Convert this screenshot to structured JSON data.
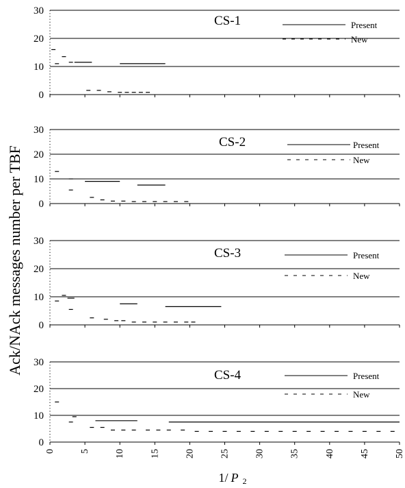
{
  "chart_data": {
    "type": "line",
    "ylabel": "Ack/NAck messages number per TBF",
    "xlabel": "1/ P 2",
    "xlabel_main": "1/",
    "xlabel_var": "P",
    "xlabel_sub": "2",
    "xlim": [
      0,
      50
    ],
    "xticks": [
      0,
      5,
      10,
      15,
      20,
      25,
      30,
      35,
      40,
      45,
      50
    ],
    "ylim": [
      0,
      30
    ],
    "yticks": [
      0,
      10,
      20,
      30
    ],
    "legend": {
      "placement": "top-right",
      "entries": [
        {
          "label": "Present",
          "style": "solid"
        },
        {
          "label": "New",
          "style": "dashed"
        }
      ]
    },
    "panels": [
      {
        "title": "CS-1",
        "series": [
          {
            "name": "Present",
            "style": "solid",
            "segments": [
              {
                "x": [
                  3.5,
                  6
                ],
                "y": 11.5
              },
              {
                "x": [
                  10,
                  16.5
                ],
                "y": 11
              }
            ]
          },
          {
            "name": "New",
            "style": "dashed",
            "points": [
              [
                0.5,
                16
              ],
              [
                1,
                11
              ],
              [
                2,
                13.5
              ],
              [
                3,
                11.5
              ],
              [
                5.5,
                1.5
              ],
              [
                7,
                1.5
              ],
              [
                8.5,
                1
              ],
              [
                10,
                0.8
              ],
              [
                11,
                0.8
              ],
              [
                12,
                0.8
              ],
              [
                13,
                0.8
              ],
              [
                14,
                0.8
              ]
            ]
          }
        ]
      },
      {
        "title": "CS-2",
        "series": [
          {
            "name": "Present",
            "style": "solid",
            "segments": [
              {
                "x": [
                  5,
                  10
                ],
                "y": 9
              },
              {
                "x": [
                  12.5,
                  16.5
                ],
                "y": 7.5
              }
            ]
          },
          {
            "name": "New",
            "style": "dashed",
            "points": [
              [
                1,
                13
              ],
              [
                3,
                10
              ],
              [
                3,
                5.5
              ],
              [
                6,
                2.5
              ],
              [
                7.5,
                1.5
              ],
              [
                9,
                1
              ],
              [
                10.5,
                1
              ],
              [
                12,
                0.8
              ],
              [
                13.5,
                0.8
              ],
              [
                15,
                0.8
              ],
              [
                16.5,
                0.8
              ],
              [
                18,
                0.8
              ],
              [
                19.5,
                0.8
              ]
            ]
          }
        ]
      },
      {
        "title": "CS-3",
        "series": [
          {
            "name": "Present",
            "style": "solid",
            "segments": [
              {
                "x": [
                  2.5,
                  3.5
                ],
                "y": 9.5
              },
              {
                "x": [
                  10,
                  12.5
                ],
                "y": 7.5
              },
              {
                "x": [
                  16.5,
                  24.5
                ],
                "y": 6.5
              }
            ]
          },
          {
            "name": "New",
            "style": "dashed",
            "points": [
              [
                1,
                8.5
              ],
              [
                2,
                10.5
              ],
              [
                3,
                5.5
              ],
              [
                6,
                2.5
              ],
              [
                8,
                2
              ],
              [
                9.5,
                1.5
              ],
              [
                10.5,
                1.5
              ],
              [
                12,
                1
              ],
              [
                13.5,
                1
              ],
              [
                15,
                1
              ],
              [
                16.5,
                1
              ],
              [
                18,
                1
              ],
              [
                19.5,
                1
              ],
              [
                20.5,
                1
              ]
            ]
          }
        ]
      },
      {
        "title": "CS-4",
        "series": [
          {
            "name": "Present",
            "style": "solid",
            "segments": [
              {
                "x": [
                  6.5,
                  12.5
                ],
                "y": 8
              },
              {
                "x": [
                  17,
                  50
                ],
                "y": 7.5
              }
            ]
          },
          {
            "name": "New",
            "style": "dashed",
            "points": [
              [
                1,
                15
              ],
              [
                3,
                7.5
              ],
              [
                3.5,
                9.5
              ],
              [
                6,
                5.5
              ],
              [
                7.5,
                5.5
              ],
              [
                9,
                4.5
              ],
              [
                10.5,
                4.5
              ],
              [
                12,
                4.5
              ],
              [
                14,
                4.5
              ],
              [
                15.5,
                4.5
              ],
              [
                17,
                4.5
              ],
              [
                19,
                4.5
              ],
              [
                21,
                4
              ],
              [
                23,
                4
              ],
              [
                25,
                4
              ],
              [
                27,
                4
              ],
              [
                29,
                4
              ],
              [
                31,
                4
              ],
              [
                33,
                4
              ],
              [
                35,
                4
              ],
              [
                37,
                4
              ],
              [
                39,
                4
              ],
              [
                41,
                4
              ],
              [
                43,
                4
              ],
              [
                45,
                4
              ],
              [
                47,
                4
              ],
              [
                49,
                4
              ]
            ]
          }
        ]
      }
    ]
  }
}
